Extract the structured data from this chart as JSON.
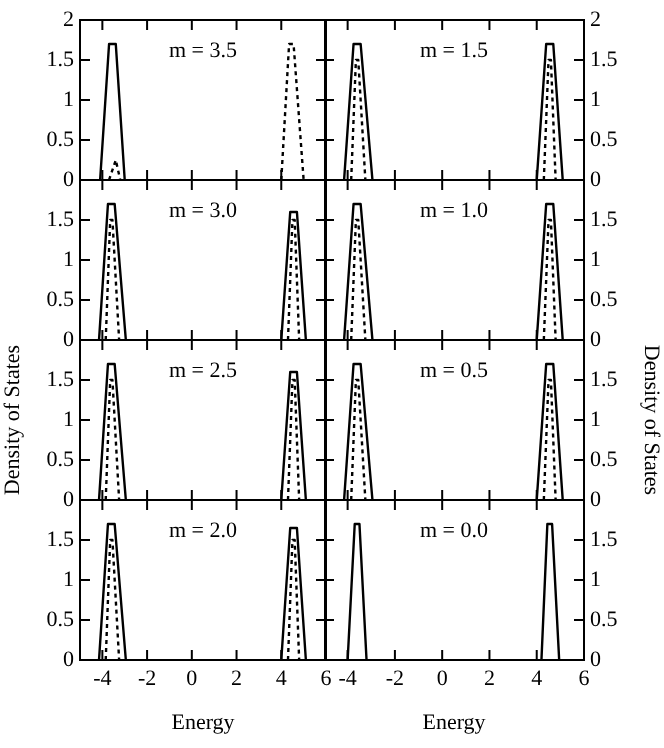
{
  "chart_data": [
    {
      "type": "line",
      "annotations": [
        "m = 3.5"
      ],
      "xlim": [
        -5,
        6
      ],
      "xticks": [
        -4,
        -2,
        0,
        2,
        4,
        6
      ],
      "ylim": [
        0,
        2
      ],
      "yticks": [
        0,
        0.5,
        1,
        1.5,
        2
      ],
      "tick_labels": "y",
      "grid": false,
      "marker": "none",
      "series": [
        {
          "color": "#000000",
          "line_style": "solid",
          "x": [
            -4.1,
            -3.7,
            -3.4,
            -3.0
          ],
          "values": [
            0,
            1.7,
            1.7,
            0
          ]
        },
        {
          "color": "#000000",
          "line_style": "dotted",
          "x": [
            -3.7,
            -3.4,
            -3.2,
            0,
            4.0,
            4.35,
            4.55,
            5.0
          ],
          "values": [
            0,
            0.25,
            0,
            null,
            0,
            1.7,
            1.7,
            0
          ]
        }
      ]
    },
    {
      "type": "line",
      "annotations": [
        "m = 1.5"
      ],
      "xlim": [
        -5,
        6
      ],
      "xticks": [
        -4,
        -2,
        0,
        2,
        4,
        6
      ],
      "ylim": [
        0,
        2
      ],
      "yticks": [
        0,
        0.5,
        1,
        1.5,
        2
      ],
      "tick_labels": "y",
      "grid": false,
      "marker": "none",
      "series": [
        {
          "color": "#000000",
          "line_style": "solid",
          "x": [
            -4.15,
            -3.75,
            -3.45,
            -2.95,
            0,
            4.0,
            4.4,
            4.7,
            5.1
          ],
          "values": [
            0,
            1.7,
            1.7,
            0,
            null,
            0,
            1.7,
            1.7,
            0
          ]
        },
        {
          "color": "#000000",
          "line_style": "dotted",
          "x": [
            -3.85,
            -3.65,
            -3.55,
            -3.25,
            0,
            4.3,
            4.5,
            4.6,
            4.8
          ],
          "values": [
            0,
            1.5,
            1.5,
            0,
            null,
            0,
            1.5,
            1.5,
            0
          ]
        }
      ]
    },
    {
      "type": "line",
      "annotations": [
        "m = 3.0"
      ],
      "xlim": [
        -5,
        6
      ],
      "xticks": [
        -4,
        -2,
        0,
        2,
        4,
        6
      ],
      "ylim": [
        0,
        2
      ],
      "yticks": [
        0,
        0.5,
        1,
        1.5
      ],
      "tick_labels": "y",
      "grid": false,
      "marker": "none",
      "series": [
        {
          "color": "#000000",
          "line_style": "solid",
          "x": [
            -4.15,
            -3.75,
            -3.45,
            -2.95,
            0,
            4.0,
            4.4,
            4.7,
            5.1
          ],
          "values": [
            0,
            1.7,
            1.7,
            0,
            null,
            0,
            1.6,
            1.6,
            0
          ]
        },
        {
          "color": "#000000",
          "line_style": "dotted",
          "x": [
            -3.85,
            -3.65,
            -3.55,
            -3.25,
            0,
            4.3,
            4.5,
            4.6,
            4.8
          ],
          "values": [
            0,
            1.5,
            1.5,
            0,
            null,
            0,
            1.5,
            1.5,
            0
          ]
        }
      ]
    },
    {
      "type": "line",
      "annotations": [
        "m = 1.0"
      ],
      "xlim": [
        -5,
        6
      ],
      "xticks": [
        -4,
        -2,
        0,
        2,
        4,
        6
      ],
      "ylim": [
        0,
        2
      ],
      "yticks": [
        0,
        0.5,
        1,
        1.5
      ],
      "tick_labels": "y",
      "grid": false,
      "marker": "none",
      "series": [
        {
          "color": "#000000",
          "line_style": "solid",
          "x": [
            -4.15,
            -3.75,
            -3.45,
            -2.95,
            0,
            4.0,
            4.4,
            4.7,
            5.1
          ],
          "values": [
            0,
            1.7,
            1.7,
            0,
            null,
            0,
            1.7,
            1.7,
            0
          ]
        },
        {
          "color": "#000000",
          "line_style": "dotted",
          "x": [
            -3.85,
            -3.65,
            -3.55,
            -3.25,
            0,
            4.3,
            4.5,
            4.6,
            4.8
          ],
          "values": [
            0,
            1.5,
            1.5,
            0,
            null,
            0,
            1.5,
            1.5,
            0
          ]
        }
      ]
    },
    {
      "type": "line",
      "annotations": [
        "m = 2.5"
      ],
      "ylabel": "Density of States",
      "xlim": [
        -5,
        6
      ],
      "xticks": [
        -4,
        -2,
        0,
        2,
        4,
        6
      ],
      "ylim": [
        0,
        2
      ],
      "yticks": [
        0,
        0.5,
        1,
        1.5
      ],
      "tick_labels": "y",
      "grid": false,
      "marker": "none",
      "series": [
        {
          "color": "#000000",
          "line_style": "solid",
          "x": [
            -4.15,
            -3.75,
            -3.45,
            -2.95,
            0,
            4.0,
            4.4,
            4.7,
            5.1
          ],
          "values": [
            0,
            1.7,
            1.7,
            0,
            null,
            0,
            1.6,
            1.6,
            0
          ]
        },
        {
          "color": "#000000",
          "line_style": "dotted",
          "x": [
            -3.85,
            -3.65,
            -3.55,
            -3.25,
            0,
            4.3,
            4.5,
            4.6,
            4.8
          ],
          "values": [
            0,
            1.5,
            1.5,
            0,
            null,
            0,
            1.5,
            1.5,
            0
          ]
        }
      ]
    },
    {
      "type": "line",
      "annotations": [
        "m = 0.5"
      ],
      "ylabel": "Density of States",
      "xlim": [
        -5,
        6
      ],
      "xticks": [
        -4,
        -2,
        0,
        2,
        4,
        6
      ],
      "ylim": [
        0,
        2
      ],
      "yticks": [
        0,
        0.5,
        1,
        1.5
      ],
      "tick_labels": "y",
      "grid": false,
      "marker": "none",
      "series": [
        {
          "color": "#000000",
          "line_style": "solid",
          "x": [
            -4.15,
            -3.75,
            -3.45,
            -2.95,
            0,
            4.0,
            4.4,
            4.7,
            5.1
          ],
          "values": [
            0,
            1.7,
            1.7,
            0,
            null,
            0,
            1.7,
            1.7,
            0
          ]
        },
        {
          "color": "#000000",
          "line_style": "dotted",
          "x": [
            -3.85,
            -3.65,
            -3.55,
            -3.25,
            0,
            4.3,
            4.5,
            4.6,
            4.8
          ],
          "values": [
            0,
            1.5,
            1.5,
            0,
            null,
            0,
            1.5,
            1.5,
            0
          ]
        }
      ]
    },
    {
      "type": "line",
      "annotations": [
        "m = 2.0"
      ],
      "xlabel": "Energy",
      "xlim": [
        -5,
        6
      ],
      "xticks": [
        -4,
        -2,
        0,
        2,
        4,
        6
      ],
      "ylim": [
        0,
        2
      ],
      "yticks": [
        0,
        0.5,
        1,
        1.5
      ],
      "grid": false,
      "marker": "none",
      "series": [
        {
          "color": "#000000",
          "line_style": "solid",
          "x": [
            -4.15,
            -3.75,
            -3.45,
            -2.95,
            0,
            4.0,
            4.4,
            4.7,
            5.1
          ],
          "values": [
            0,
            1.7,
            1.7,
            0,
            null,
            0,
            1.65,
            1.65,
            0
          ]
        },
        {
          "color": "#000000",
          "line_style": "dotted",
          "x": [
            -3.85,
            -3.65,
            -3.55,
            -3.25,
            0,
            4.3,
            4.5,
            4.6,
            4.8
          ],
          "values": [
            0,
            1.5,
            1.5,
            0,
            null,
            0,
            1.5,
            1.5,
            0
          ]
        }
      ]
    },
    {
      "type": "line",
      "annotations": [
        "m = 0.0"
      ],
      "xlabel": "Energy",
      "xlim": [
        -5,
        6
      ],
      "xticks": [
        -4,
        -2,
        0,
        2,
        4,
        6
      ],
      "ylim": [
        0,
        2
      ],
      "yticks": [
        0,
        0.5,
        1,
        1.5
      ],
      "grid": false,
      "marker": "none",
      "series": [
        {
          "color": "#000000",
          "line_style": "solid",
          "x": [
            -4.0,
            -3.7,
            -3.5,
            -3.2,
            0,
            4.2,
            4.45,
            4.65,
            4.95
          ],
          "values": [
            0,
            1.7,
            1.7,
            0,
            null,
            0,
            1.7,
            1.7,
            0
          ]
        }
      ]
    }
  ]
}
